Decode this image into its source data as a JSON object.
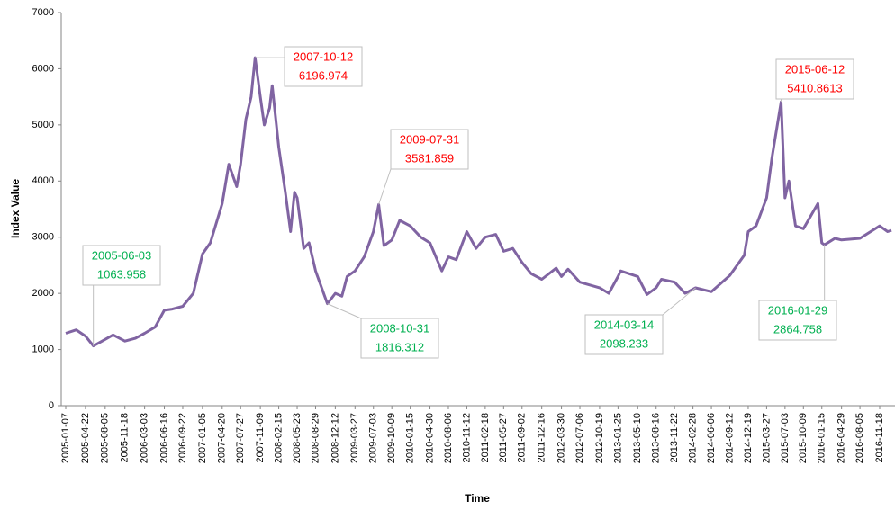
{
  "chart_data": {
    "type": "line",
    "x_label": "Time",
    "y_label": "Index Value",
    "x": [
      "2005-01-07",
      "2005-03-04",
      "2005-04-22",
      "2005-06-03",
      "2005-08-05",
      "2005-09-16",
      "2005-11-18",
      "2006-01-13",
      "2006-03-03",
      "2006-04-28",
      "2006-06-16",
      "2006-07-28",
      "2006-09-22",
      "2006-11-17",
      "2007-01-05",
      "2007-02-16",
      "2007-04-20",
      "2007-05-25",
      "2007-07-06",
      "2007-07-27",
      "2007-08-24",
      "2007-09-21",
      "2007-10-12",
      "2007-11-09",
      "2007-11-30",
      "2007-12-28",
      "2008-01-11",
      "2008-02-15",
      "2008-03-21",
      "2008-04-18",
      "2008-05-09",
      "2008-05-23",
      "2008-06-27",
      "2008-07-25",
      "2008-08-29",
      "2008-10-31",
      "2008-12-12",
      "2009-01-16",
      "2009-02-13",
      "2009-03-27",
      "2009-05-15",
      "2009-07-03",
      "2009-07-31",
      "2009-08-28",
      "2009-10-09",
      "2009-11-20",
      "2010-01-15",
      "2010-03-12",
      "2010-04-30",
      "2010-07-02",
      "2010-08-06",
      "2010-09-17",
      "2010-11-12",
      "2010-12-31",
      "2011-02-18",
      "2011-04-15",
      "2011-05-27",
      "2011-07-15",
      "2011-09-02",
      "2011-10-21",
      "2011-12-16",
      "2012-03-02",
      "2012-03-30",
      "2012-05-04",
      "2012-07-06",
      "2012-10-19",
      "2012-12-07",
      "2013-01-25",
      "2013-02-08",
      "2013-05-10",
      "2013-06-28",
      "2013-08-16",
      "2013-09-13",
      "2013-11-22",
      "2014-01-17",
      "2014-03-14",
      "2014-06-06",
      "2014-09-12",
      "2014-11-28",
      "2014-12-19",
      "2015-01-30",
      "2015-03-27",
      "2015-04-24",
      "2015-06-12",
      "2015-07-03",
      "2015-07-24",
      "2015-08-28",
      "2015-10-09",
      "2015-12-25",
      "2016-01-15",
      "2016-01-29",
      "2016-03-25",
      "2016-04-29",
      "2016-08-05",
      "2016-11-18",
      "2016-12-30",
      "2017-01-20"
    ],
    "series": [
      {
        "name": "Index Value",
        "color": "#8064a2",
        "values": [
          1290,
          1350,
          1240,
          1063.958,
          1180,
          1260,
          1150,
          1200,
          1290,
          1400,
          1700,
          1720,
          1770,
          2000,
          2700,
          2900,
          3600,
          4300,
          3900,
          4300,
          5100,
          5500,
          6196.974,
          5500,
          5000,
          5300,
          5700,
          4600,
          3800,
          3100,
          3800,
          3700,
          2800,
          2900,
          2400,
          1816.312,
          2000,
          1950,
          2300,
          2400,
          2650,
          3100,
          3581.859,
          2850,
          2950,
          3300,
          3200,
          3000,
          2900,
          2400,
          2650,
          2600,
          3100,
          2800,
          3000,
          3050,
          2750,
          2800,
          2550,
          2350,
          2250,
          2450,
          2300,
          2430,
          2200,
          2100,
          2000,
          2300,
          2400,
          2300,
          1980,
          2100,
          2250,
          2200,
          2000,
          2098.233,
          2030,
          2320,
          2680,
          3100,
          3200,
          3700,
          4400,
          5410.8613,
          3700,
          4000,
          3200,
          3150,
          3600,
          2900,
          2864.758,
          2980,
          2950,
          2980,
          3200,
          3100,
          3120
        ]
      }
    ],
    "ylim": [
      0,
      7000
    ],
    "yticks": [
      0,
      1000,
      2000,
      3000,
      4000,
      5000,
      6000,
      7000
    ],
    "xticks": [
      "2005-01-07",
      "2005-04-22",
      "2005-08-05",
      "2005-11-18",
      "2006-03-03",
      "2006-06-16",
      "2006-09-22",
      "2007-01-05",
      "2007-04-20",
      "2007-07-27",
      "2007-11-09",
      "2008-02-15",
      "2008-05-23",
      "2008-08-29",
      "2008-12-12",
      "2009-03-27",
      "2009-07-03",
      "2009-10-09",
      "2010-01-15",
      "2010-04-30",
      "2010-08-06",
      "2010-11-12",
      "2011-02-18",
      "2011-05-27",
      "2011-09-02",
      "2011-12-16",
      "2012-03-30",
      "2012-07-06",
      "2012-10-19",
      "2013-01-25",
      "2013-05-10",
      "2013-08-16",
      "2013-11-22",
      "2014-02-28",
      "2014-06-06",
      "2014-09-12",
      "2014-12-19",
      "2015-03-27",
      "2015-07-03",
      "2015-10-09",
      "2016-01-15",
      "2016-04-29",
      "2016-08-05",
      "2016-11-18"
    ],
    "annotations": [
      {
        "x": "2005-06-03",
        "y": 1063.958,
        "color": "#00b050"
      },
      {
        "x": "2007-10-12",
        "y": 6196.974,
        "color": "#ff0000"
      },
      {
        "x": "2008-10-31",
        "y": 1816.312,
        "color": "#00b050"
      },
      {
        "x": "2009-07-31",
        "y": 3581.859,
        "color": "#ff0000"
      },
      {
        "x": "2014-03-14",
        "y": 2098.233,
        "color": "#00b050"
      },
      {
        "x": "2015-06-12",
        "y": 5410.8613,
        "color": "#ff0000"
      },
      {
        "x": "2016-01-29",
        "y": 2864.758,
        "color": "#00b050"
      }
    ]
  }
}
